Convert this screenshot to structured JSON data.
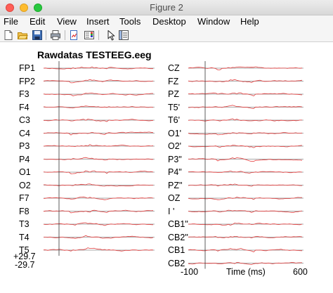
{
  "window": {
    "title": "Figure 2"
  },
  "menubar": {
    "items": [
      "File",
      "Edit",
      "View",
      "Insert",
      "Tools",
      "Desktop",
      "Window",
      "Help"
    ]
  },
  "toolbar": {
    "tools": [
      "new-figure-icon",
      "open-file-icon",
      "save-icon",
      "print-icon",
      "link-plot-icon",
      "insert-colorbar-icon",
      "edit-plot-arrow-icon",
      "property-inspector-icon"
    ]
  },
  "plot": {
    "title": "Rawdatas TESTEEG.eeg",
    "scale_top": "+29.7",
    "scale_bottom": "-29.7",
    "trace_color": "#e33c3c",
    "baseline_color": "#555555",
    "left_column": {
      "channels": [
        "FP1",
        "FP2",
        "F3",
        "F4",
        "C3",
        "C4",
        "P3",
        "P4",
        "O1",
        "O2",
        "F7",
        "F8",
        "T3",
        "T4",
        "T5"
      ]
    },
    "right_column": {
      "channels": [
        "CZ",
        "FZ",
        "PZ",
        "T5'",
        "T6'",
        "O1'",
        "O2'",
        "P3\"",
        "P4\"",
        "PZ\"",
        "OZ",
        "I '",
        "CB1\"",
        "CB2\"",
        "CB1",
        "CB2"
      ],
      "x_axis": {
        "min_label": "-100",
        "max_label": "600",
        "label": "Time (ms)"
      }
    }
  }
}
